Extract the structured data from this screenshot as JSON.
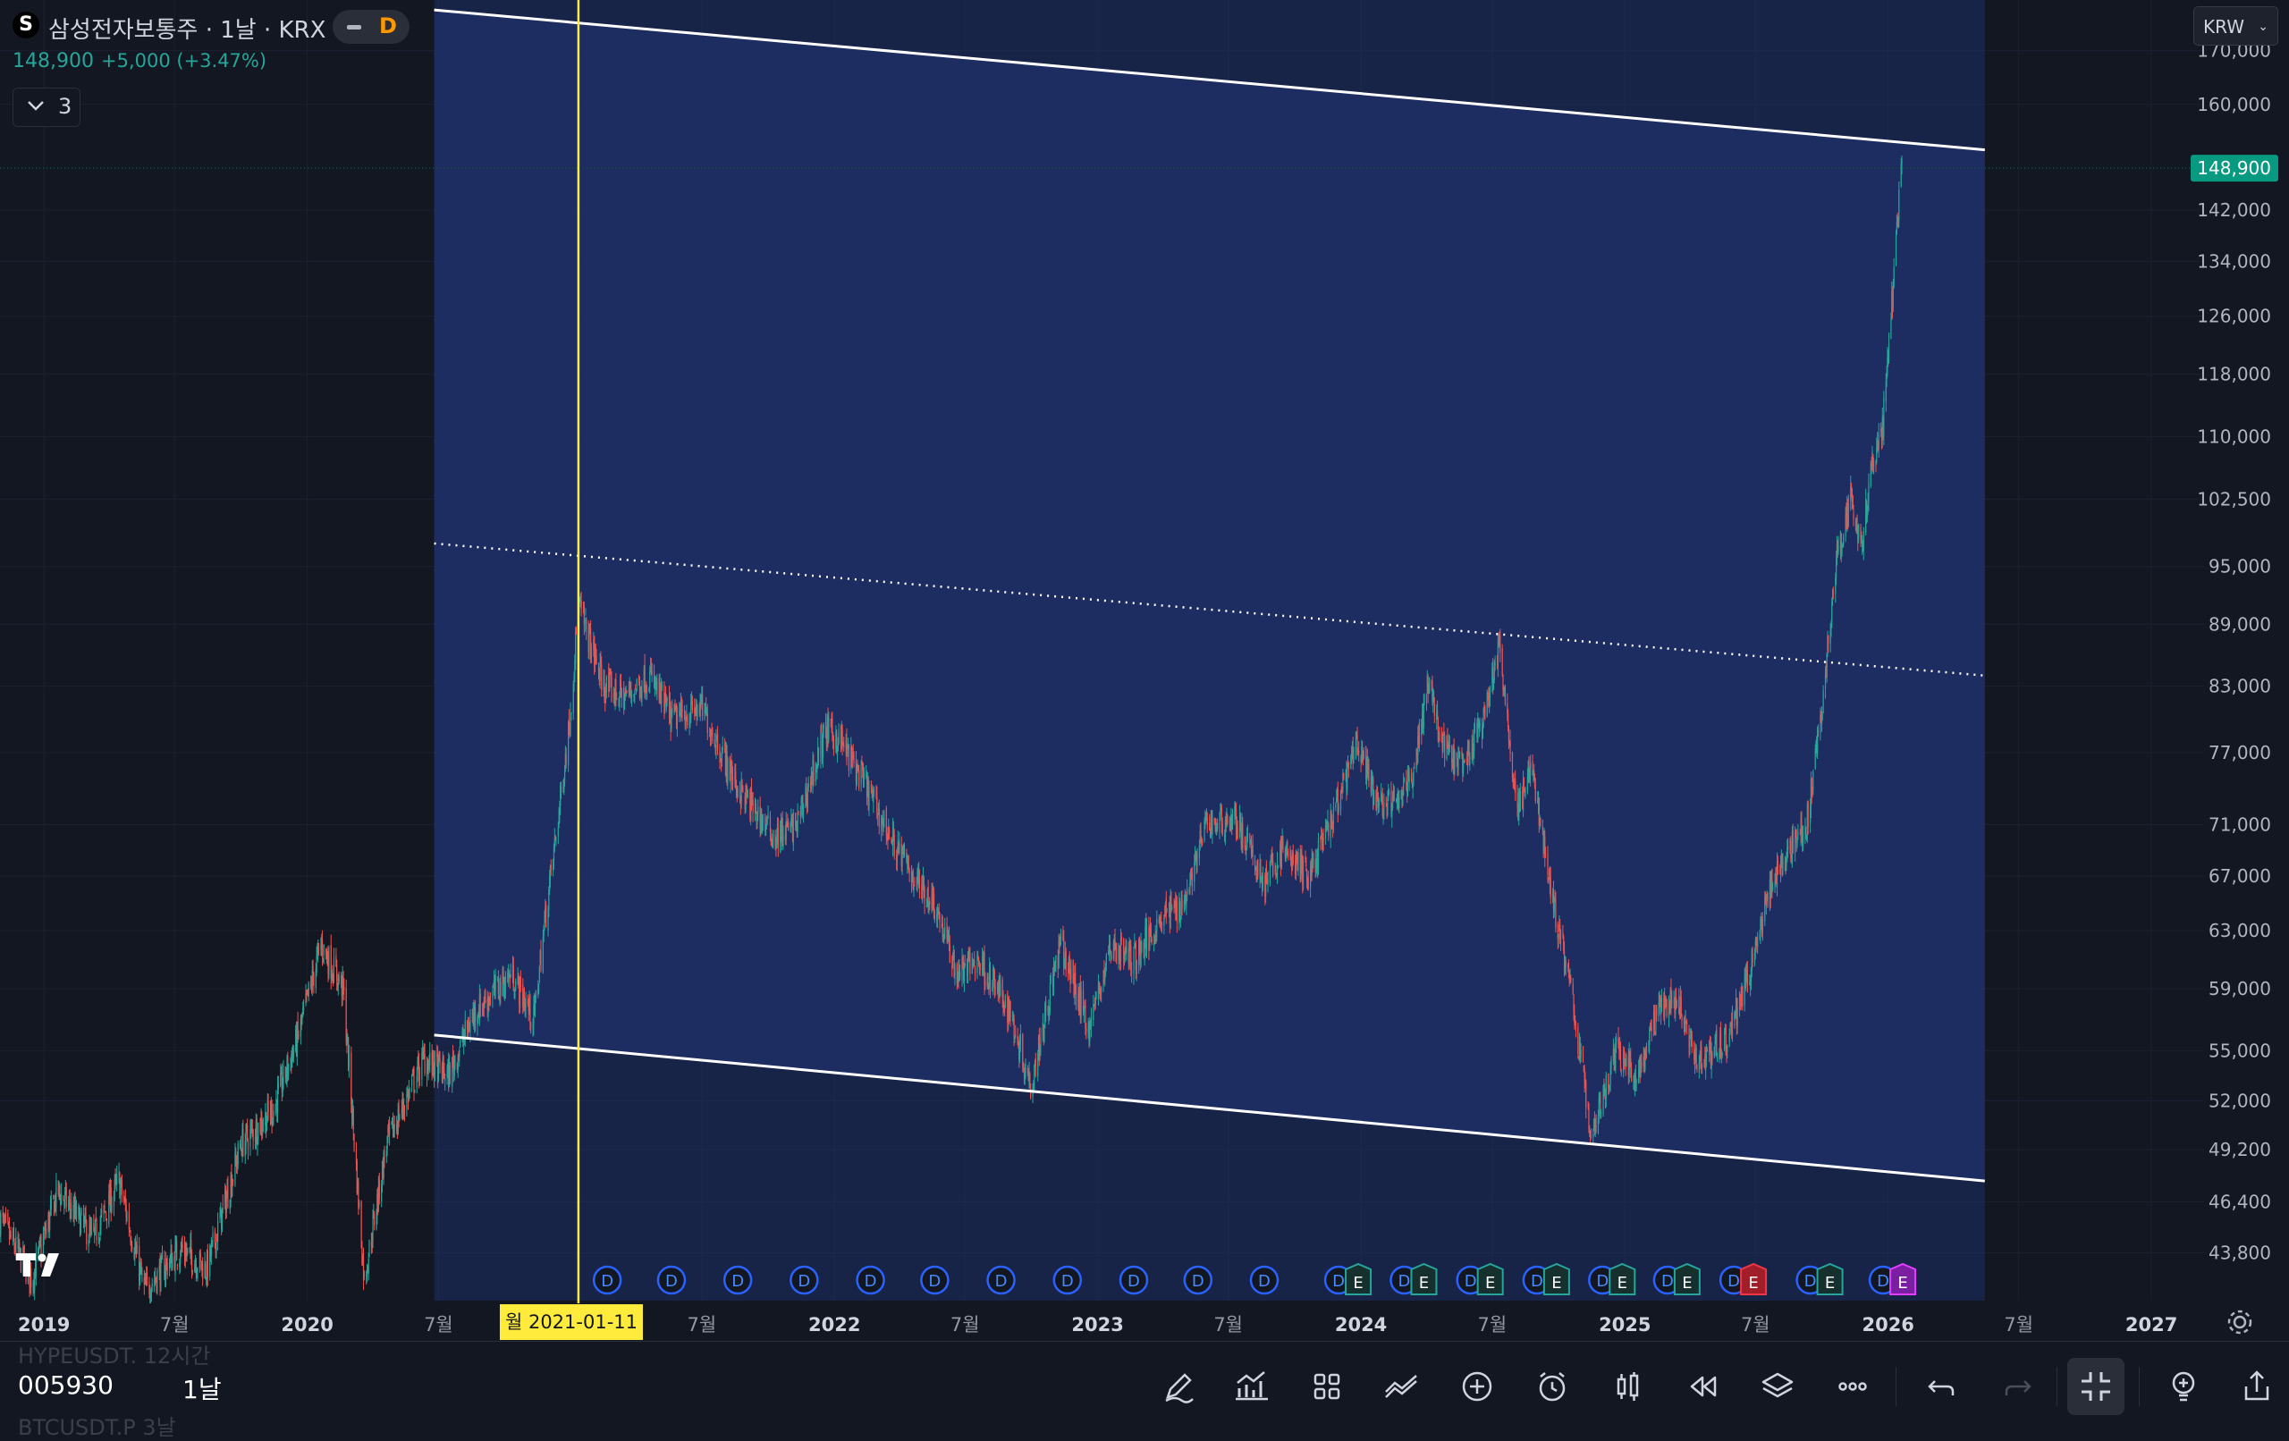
{
  "header": {
    "symbol_badge": "S",
    "title": "삼성전자보통주 · 1날 · KRX",
    "status_letter": "D",
    "last_price": "148,900",
    "change": "+5,000 (+3.47%)",
    "collapsed_count": "3",
    "currency": "KRW"
  },
  "colors": {
    "background": "#131722",
    "up": "#26a69a",
    "down": "#ef5350",
    "channel_fill": "#1e2f66",
    "marker": "#ffeb3b"
  },
  "chart_data": {
    "type": "candlestick",
    "y_scale": "log",
    "ylim": [
      41500,
      180000
    ],
    "xlim": [
      "2018-11-01",
      "2027-03-15"
    ],
    "y_ticks": [
      170000,
      160000,
      142000,
      134000,
      126000,
      118000,
      110000,
      102500,
      95000,
      89000,
      83000,
      77000,
      71000,
      67000,
      63000,
      59000,
      55000,
      52000,
      49200,
      46400,
      43800
    ],
    "y_tick_labels": [
      "170,000",
      "160,000",
      "142,000",
      "134,000",
      "126,000",
      "118,000",
      "110,000",
      "102,500",
      "95,000",
      "89,000",
      "83,000",
      "77,000",
      "71,000",
      "67,000",
      "63,000",
      "59,000",
      "55,000",
      "52,000",
      "49,200",
      "46,400",
      "43,800"
    ],
    "x_ticks": [
      {
        "date": "2019-01-01",
        "label": "2019",
        "bold": true
      },
      {
        "date": "2019-07-01",
        "label": "7월",
        "bold": false
      },
      {
        "date": "2020-01-01",
        "label": "2020",
        "bold": true
      },
      {
        "date": "2020-07-01",
        "label": "7월",
        "bold": false
      },
      {
        "date": "2021-07-01",
        "label": "7월",
        "bold": false
      },
      {
        "date": "2022-01-01",
        "label": "2022",
        "bold": true
      },
      {
        "date": "2022-07-01",
        "label": "7월",
        "bold": false
      },
      {
        "date": "2023-01-01",
        "label": "2023",
        "bold": true
      },
      {
        "date": "2023-07-01",
        "label": "7월",
        "bold": false
      },
      {
        "date": "2024-01-01",
        "label": "2024",
        "bold": true
      },
      {
        "date": "2024-07-01",
        "label": "7월",
        "bold": false
      },
      {
        "date": "2025-01-01",
        "label": "2025",
        "bold": true
      },
      {
        "date": "2025-07-01",
        "label": "7월",
        "bold": false
      },
      {
        "date": "2026-01-01",
        "label": "2026",
        "bold": true
      },
      {
        "date": "2026-07-01",
        "label": "7월",
        "bold": false
      },
      {
        "date": "2027-01-01",
        "label": "2027",
        "bold": true
      }
    ],
    "price_path": [
      [
        "2018-11-01",
        45500
      ],
      [
        "2018-12-15",
        42500
      ],
      [
        "2019-01-20",
        47000
      ],
      [
        "2019-03-10",
        44500
      ],
      [
        "2019-04-15",
        47500
      ],
      [
        "2019-05-20",
        42000
      ],
      [
        "2019-07-10",
        44000
      ],
      [
        "2019-08-15",
        43000
      ],
      [
        "2019-10-01",
        49500
      ],
      [
        "2019-11-15",
        51500
      ],
      [
        "2019-12-20",
        56000
      ],
      [
        "2020-01-20",
        62000
      ],
      [
        "2020-02-20",
        59000
      ],
      [
        "2020-03-20",
        42500
      ],
      [
        "2020-04-20",
        49500
      ],
      [
        "2020-06-10",
        54500
      ],
      [
        "2020-07-15",
        53500
      ],
      [
        "2020-08-20",
        57500
      ],
      [
        "2020-10-10",
        60000
      ],
      [
        "2020-11-10",
        57000
      ],
      [
        "2020-11-25",
        63500
      ],
      [
        "2020-12-15",
        72000
      ],
      [
        "2020-12-30",
        80000
      ],
      [
        "2021-01-11",
        91000
      ],
      [
        "2021-02-15",
        83000
      ],
      [
        "2021-03-15",
        82000
      ],
      [
        "2021-04-20",
        84000
      ],
      [
        "2021-05-20",
        80000
      ],
      [
        "2021-07-01",
        81000
      ],
      [
        "2021-08-20",
        74000
      ],
      [
        "2021-10-10",
        70000
      ],
      [
        "2021-11-10",
        71000
      ],
      [
        "2021-12-20",
        79000
      ],
      [
        "2022-01-10",
        78000
      ],
      [
        "2022-02-15",
        74000
      ],
      [
        "2022-03-20",
        70000
      ],
      [
        "2022-04-20",
        67000
      ],
      [
        "2022-05-20",
        65000
      ],
      [
        "2022-06-20",
        60000
      ],
      [
        "2022-07-20",
        61000
      ],
      [
        "2022-09-01",
        57500
      ],
      [
        "2022-09-30",
        53000
      ],
      [
        "2022-11-10",
        62000
      ],
      [
        "2022-12-20",
        56500
      ],
      [
        "2023-01-20",
        62000
      ],
      [
        "2023-02-20",
        61000
      ],
      [
        "2023-03-31",
        64000
      ],
      [
        "2023-04-30",
        65000
      ],
      [
        "2023-05-31",
        71000
      ],
      [
        "2023-07-10",
        71500
      ],
      [
        "2023-08-20",
        66500
      ],
      [
        "2023-09-15",
        69000
      ],
      [
        "2023-10-20",
        67000
      ],
      [
        "2023-11-20",
        71000
      ],
      [
        "2023-12-28",
        78000
      ],
      [
        "2024-01-20",
        73000
      ],
      [
        "2024-02-20",
        72500
      ],
      [
        "2024-03-15",
        76000
      ],
      [
        "2024-04-05",
        84000
      ],
      [
        "2024-04-20",
        78000
      ],
      [
        "2024-05-20",
        75500
      ],
      [
        "2024-06-20",
        80000
      ],
      [
        "2024-07-10",
        87000
      ],
      [
        "2024-08-05",
        72000
      ],
      [
        "2024-08-25",
        76000
      ],
      [
        "2024-09-20",
        66000
      ],
      [
        "2024-10-20",
        58500
      ],
      [
        "2024-11-15",
        50000
      ],
      [
        "2024-12-20",
        55000
      ],
      [
        "2025-01-20",
        53500
      ],
      [
        "2025-02-15",
        57500
      ],
      [
        "2025-03-15",
        58500
      ],
      [
        "2025-04-10",
        54500
      ],
      [
        "2025-05-20",
        55500
      ],
      [
        "2025-06-20",
        59500
      ],
      [
        "2025-07-20",
        66000
      ],
      [
        "2025-08-20",
        69500
      ],
      [
        "2025-09-10",
        71000
      ],
      [
        "2025-09-30",
        80000
      ],
      [
        "2025-10-20",
        95000
      ],
      [
        "2025-11-10",
        103000
      ],
      [
        "2025-11-25",
        97000
      ],
      [
        "2025-12-10",
        107000
      ],
      [
        "2025-12-25",
        112000
      ],
      [
        "2026-01-05",
        126000
      ],
      [
        "2026-01-12",
        137000
      ],
      [
        "2026-01-20",
        148900
      ]
    ],
    "channel": {
      "upper": [
        [
          "2020-06-25",
          178000
        ],
        [
          "2026-05-15",
          152000
        ]
      ],
      "middle": [
        [
          "2020-06-25",
          97500
        ],
        [
          "2026-05-15",
          84000
        ]
      ],
      "lower": [
        [
          "2020-06-25",
          56000
        ],
        [
          "2026-05-15",
          47500
        ]
      ]
    },
    "vertical_marker": {
      "date": "2021-01-11",
      "label": "월 2021-01-11"
    },
    "last_price": {
      "value": 148900,
      "label": "148,900"
    },
    "events": [
      {
        "date": "2021-02-20",
        "tags": [
          "D"
        ]
      },
      {
        "date": "2021-05-20",
        "tags": [
          "D"
        ]
      },
      {
        "date": "2021-08-20",
        "tags": [
          "D"
        ]
      },
      {
        "date": "2021-11-20",
        "tags": [
          "D"
        ]
      },
      {
        "date": "2022-02-20",
        "tags": [
          "D"
        ]
      },
      {
        "date": "2022-05-20",
        "tags": [
          "D"
        ]
      },
      {
        "date": "2022-08-20",
        "tags": [
          "D"
        ]
      },
      {
        "date": "2022-11-20",
        "tags": [
          "D"
        ]
      },
      {
        "date": "2023-02-20",
        "tags": [
          "D"
        ]
      },
      {
        "date": "2023-05-20",
        "tags": [
          "D"
        ]
      },
      {
        "date": "2023-08-20",
        "tags": [
          "D"
        ]
      },
      {
        "date": "2023-12-01",
        "tags": [
          "D",
          "E"
        ]
      },
      {
        "date": "2024-03-01",
        "tags": [
          "D",
          "E"
        ]
      },
      {
        "date": "2024-06-01",
        "tags": [
          "D",
          "E"
        ]
      },
      {
        "date": "2024-09-01",
        "tags": [
          "D",
          "E"
        ]
      },
      {
        "date": "2024-12-01",
        "tags": [
          "D",
          "E"
        ]
      },
      {
        "date": "2025-03-01",
        "tags": [
          "D",
          "E"
        ]
      },
      {
        "date": "2025-06-01",
        "tags": [
          "D",
          "E-red"
        ]
      },
      {
        "date": "2025-09-15",
        "tags": [
          "D",
          "E"
        ]
      },
      {
        "date": "2025-12-25",
        "tags": [
          "D",
          "E-magenta"
        ]
      }
    ]
  },
  "bottom_bar": {
    "ghost_top": "HYPEUSDT.   12시간",
    "ghost_bottom": "BTCUSDT.P   3날",
    "symbol": "005930",
    "interval": "1날"
  },
  "toolbar": [
    {
      "name": "draw-pen-icon"
    },
    {
      "name": "indicators-icon"
    },
    {
      "name": "layout-grid-icon"
    },
    {
      "name": "trend-tools-icon"
    },
    {
      "name": "add-plus-icon"
    },
    {
      "name": "alarm-clock-icon"
    },
    {
      "name": "candle-type-icon"
    },
    {
      "name": "replay-icon"
    },
    {
      "name": "layers-icon"
    },
    {
      "name": "more-icon"
    },
    {
      "name": "undo-icon"
    },
    {
      "name": "redo-icon"
    },
    {
      "name": "fullscreen-exit-icon"
    },
    {
      "name": "light-bulb-icon"
    },
    {
      "name": "share-icon"
    }
  ]
}
